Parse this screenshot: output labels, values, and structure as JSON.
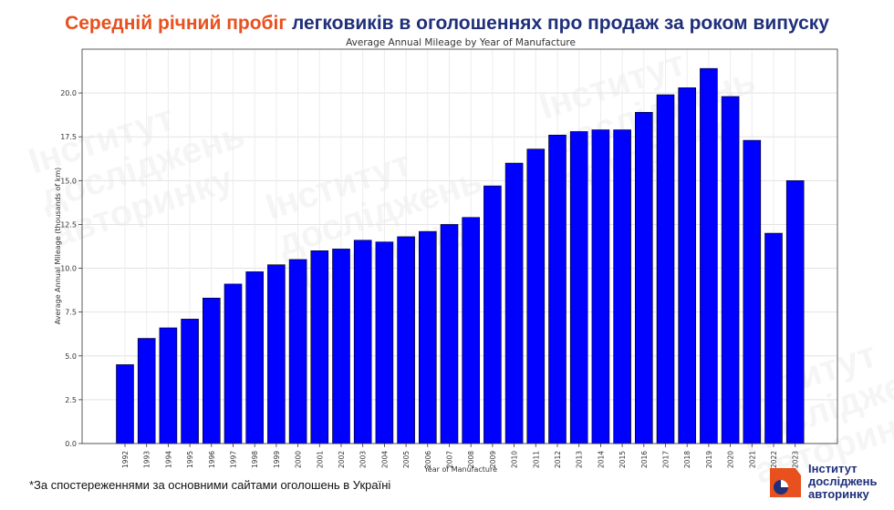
{
  "headline": {
    "accent": "Середній річний пробіг",
    "rest": "легковиків в оголошеннях про продаж за роком випуску"
  },
  "footnote": "*За спостереженнями за основними сайтами оголошень в Україні",
  "brand": {
    "lines": [
      "Інститут",
      "досліджень",
      "авторинку"
    ]
  },
  "watermark_lines": [
    "Інститут",
    "досліджень",
    "авторинку"
  ],
  "colors": {
    "bar": "#0000ff",
    "accent": "#e8501e",
    "brand": "#1f2f7a"
  },
  "chart_data": {
    "type": "bar",
    "title": "Average Annual Mileage by Year of Manufacture",
    "xlabel": "Year of Manufacture",
    "ylabel": "Average Annual Mileage (thousands of km)",
    "ylim": [
      0,
      22.5
    ],
    "yticks": [
      "0.0",
      "2.5",
      "5.0",
      "7.5",
      "10.0",
      "12.5",
      "15.0",
      "17.5",
      "20.0"
    ],
    "grid": true,
    "categories": [
      "1992",
      "1993",
      "1994",
      "1995",
      "1996",
      "1997",
      "1998",
      "1999",
      "2000",
      "2001",
      "2002",
      "2003",
      "2004",
      "2005",
      "2006",
      "2007",
      "2008",
      "2009",
      "2010",
      "2011",
      "2012",
      "2013",
      "2014",
      "2015",
      "2016",
      "2017",
      "2018",
      "2019",
      "2020",
      "2021",
      "2022",
      "2023"
    ],
    "values": [
      4.5,
      6.0,
      6.6,
      7.1,
      8.3,
      9.1,
      9.8,
      10.2,
      10.5,
      11.0,
      11.1,
      11.6,
      11.5,
      11.8,
      12.1,
      12.5,
      12.9,
      14.7,
      16.0,
      16.8,
      17.6,
      17.8,
      17.9,
      17.9,
      18.9,
      19.9,
      20.3,
      21.4,
      19.8,
      17.3,
      12.0,
      15.0
    ]
  }
}
